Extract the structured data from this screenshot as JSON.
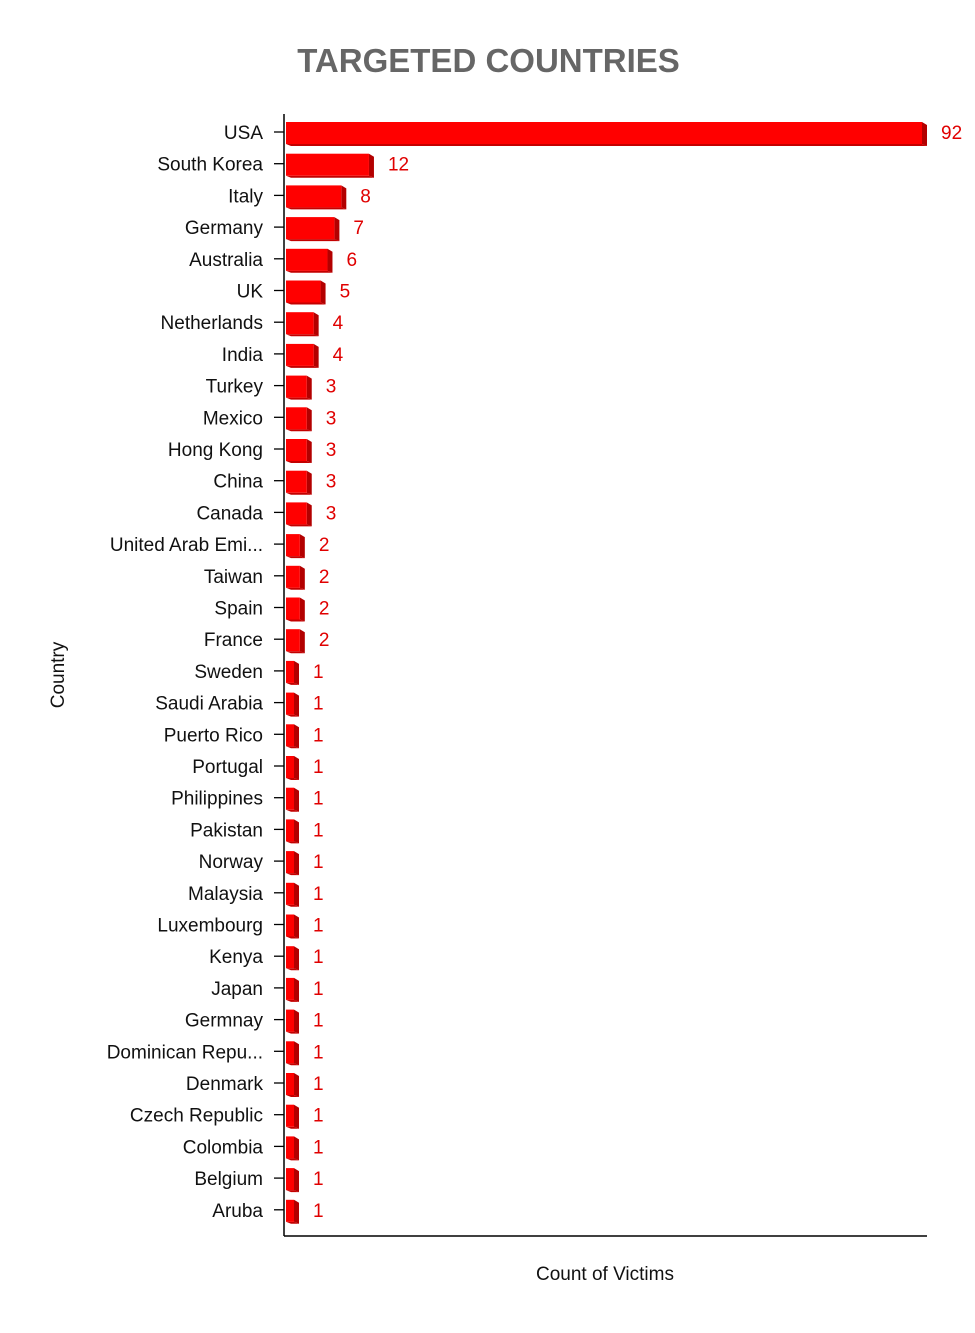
{
  "chart_data": {
    "type": "bar",
    "orientation": "horizontal",
    "title": "TARGETED COUNTRIES",
    "xlabel": "Count of Victims",
    "ylabel": "Country",
    "xlim": [
      0,
      92
    ],
    "grid": false,
    "bar_color": "#ff0000",
    "bar_shade_color": "#b30000",
    "label_color": "#e00000",
    "categories": [
      "USA",
      "South Korea",
      "Italy",
      "Germany",
      "Australia",
      "UK",
      "Netherlands",
      "India",
      "Turkey",
      "Mexico",
      "Hong Kong",
      "China",
      "Canada",
      "United Arab Emi...",
      "Taiwan",
      "Spain",
      "France",
      "Sweden",
      "Saudi Arabia",
      "Puerto Rico",
      "Portugal",
      "Philippines",
      "Pakistan",
      "Norway",
      "Malaysia",
      "Luxembourg",
      "Kenya",
      "Japan",
      "Germnay",
      "Dominican Repu...",
      "Denmark",
      "Czech Republic",
      "Colombia",
      "Belgium",
      "Aruba"
    ],
    "values": [
      92,
      12,
      8,
      7,
      6,
      5,
      4,
      4,
      3,
      3,
      3,
      3,
      3,
      2,
      2,
      2,
      2,
      1,
      1,
      1,
      1,
      1,
      1,
      1,
      1,
      1,
      1,
      1,
      1,
      1,
      1,
      1,
      1,
      1,
      1
    ]
  }
}
